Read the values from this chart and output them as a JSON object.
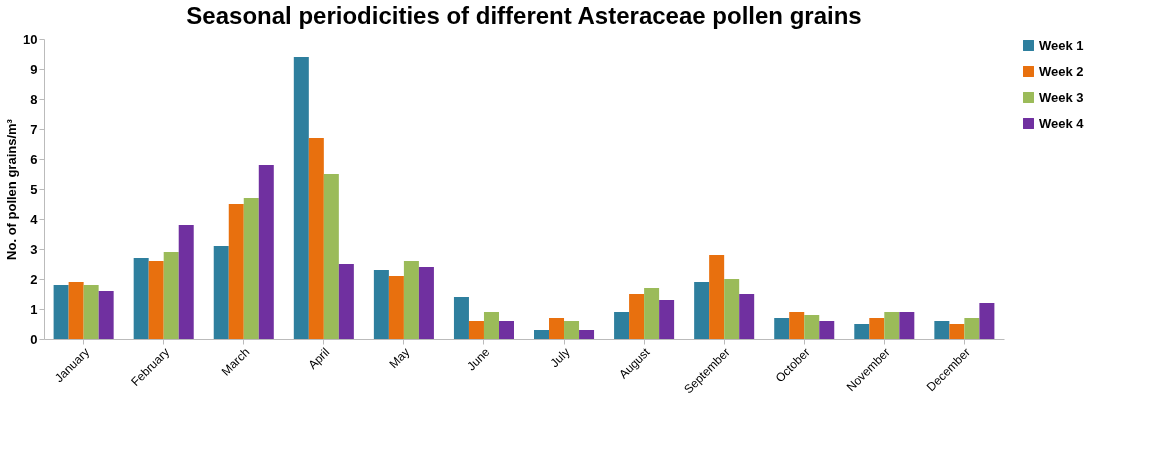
{
  "chart_data": {
    "type": "bar",
    "title": "Seasonal periodicities of different Asteraceae pollen grains",
    "ylabel": "No. of pollen grains/m³",
    "categories": [
      "January",
      "February",
      "March",
      "April",
      "May",
      "June",
      "July",
      "August",
      "September",
      "October",
      "November",
      "December"
    ],
    "series": [
      {
        "name": "Week 1",
        "color": "#2e7f9e",
        "values": [
          1.8,
          2.7,
          3.1,
          9.4,
          2.3,
          1.4,
          0.3,
          0.9,
          1.9,
          0.7,
          0.5,
          0.6
        ]
      },
      {
        "name": "Week 2",
        "color": "#e8700e",
        "values": [
          1.9,
          2.6,
          4.5,
          6.7,
          2.1,
          0.6,
          0.7,
          1.5,
          2.8,
          0.9,
          0.7,
          0.5
        ]
      },
      {
        "name": "Week 3",
        "color": "#9bbb59",
        "values": [
          1.8,
          2.9,
          4.7,
          5.5,
          2.6,
          0.9,
          0.6,
          1.7,
          2.0,
          0.8,
          0.9,
          0.7
        ]
      },
      {
        "name": "Week 4",
        "color": "#7030a0",
        "values": [
          1.6,
          3.8,
          5.8,
          2.5,
          2.4,
          0.6,
          0.3,
          1.3,
          1.5,
          0.6,
          0.9,
          1.2
        ]
      }
    ],
    "ylim": [
      0,
      10
    ],
    "yticks": [
      0,
      1,
      2,
      3,
      4,
      5,
      6,
      7,
      8,
      9,
      10
    ],
    "grid": false,
    "legend": "right"
  }
}
